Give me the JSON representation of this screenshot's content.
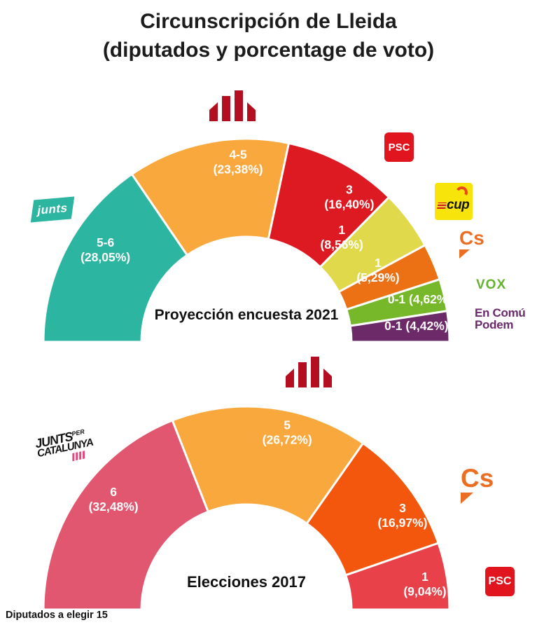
{
  "page": {
    "title_line1": "Circunscripción de Lleida",
    "title_line2": "(diputados y porcentage de voto)",
    "footnote": "Diputados a elegir 15"
  },
  "logos": {
    "junts": "junts",
    "psc": "PSC",
    "cup": "cup",
    "cs": "Cs",
    "vox": "VOX",
    "ecp_line1": "En Comú",
    "ecp_line2": "Podem",
    "jxcat_junts": "JUNTS",
    "jxcat_per": "PER",
    "jxcat_catalunya": "CATALUNYA"
  },
  "chart_data": [
    {
      "type": "pie",
      "variant": "half-donut",
      "title": "Proyección encuesta 2021",
      "value_format": "seats (vote %)",
      "legend_position": "around-arc",
      "series": [
        {
          "party": "Junts",
          "seats": "5-6",
          "vote_pct": 28.05,
          "label_lines": [
            "5-6",
            "(28,05%)"
          ],
          "color": "#2cb5a1",
          "label_angle": 147.8,
          "label_r": 238
        },
        {
          "party": "ERC",
          "seats": "4-5",
          "vote_pct": 23.38,
          "label_lines": [
            "4-5",
            "(23,38%)"
          ],
          "color": "#f9a83e",
          "label_angle": 92.7,
          "label_r": 253
        },
        {
          "party": "PSC",
          "seats": "3",
          "vote_pct": 16.4,
          "label_lines": [
            "3",
            "(16,40%)"
          ],
          "color": "#dd1a22",
          "label_angle": 54.0,
          "label_r": 250
        },
        {
          "party": "CUP",
          "seats": "1",
          "vote_pct": 8.56,
          "label_lines": [
            "1",
            "(8,56%)"
          ],
          "color": "#e0d94c",
          "label_angle": 46.8,
          "label_r": 199
        },
        {
          "party": "Cs",
          "seats": "1",
          "vote_pct": 5.29,
          "label_lines": [
            "1",
            "(5,29%)"
          ],
          "color": "#ec7014",
          "label_angle": 27.5,
          "label_r": 212
        },
        {
          "party": "VOX",
          "seats": "0-1",
          "vote_pct": 4.62,
          "label_lines": [
            "0-1 (4,62%)"
          ],
          "color": "#76b82a",
          "label_angle": 13.8,
          "label_r": 255
        },
        {
          "party": "En Comú Podem",
          "seats": "0-1",
          "vote_pct": 4.42,
          "label_lines": [
            "0-1 (4,42%)"
          ],
          "color": "#6d2a68",
          "label_angle": 5.4,
          "label_r": 244
        }
      ]
    },
    {
      "type": "pie",
      "variant": "half-donut",
      "title": "Elecciones 2017",
      "value_format": "seats (vote %)",
      "legend_position": "around-arc",
      "series": [
        {
          "party": "Junts per Catalunya",
          "seats": "6",
          "vote_pct": 32.48,
          "label_lines": [
            "6",
            "(32,48%)"
          ],
          "color": "#e25770",
          "label_angle": 141.1,
          "label_r": 244
        },
        {
          "party": "ERC",
          "seats": "5",
          "vote_pct": 26.72,
          "label_lines": [
            "5",
            "(26,72%)"
          ],
          "color": "#f9a83e",
          "label_angle": 76.8,
          "label_r": 255
        },
        {
          "party": "Cs",
          "seats": "3",
          "vote_pct": 16.97,
          "label_lines": [
            "3",
            "(16,97%)"
          ],
          "color": "#f3570e",
          "label_angle": 30.2,
          "label_r": 258
        },
        {
          "party": "PSC",
          "seats": "1",
          "vote_pct": 9.04,
          "label_lines": [
            "1",
            "(9,04%)"
          ],
          "color": "#e8414a",
          "label_angle": 7.2,
          "label_r": 257
        }
      ]
    }
  ]
}
